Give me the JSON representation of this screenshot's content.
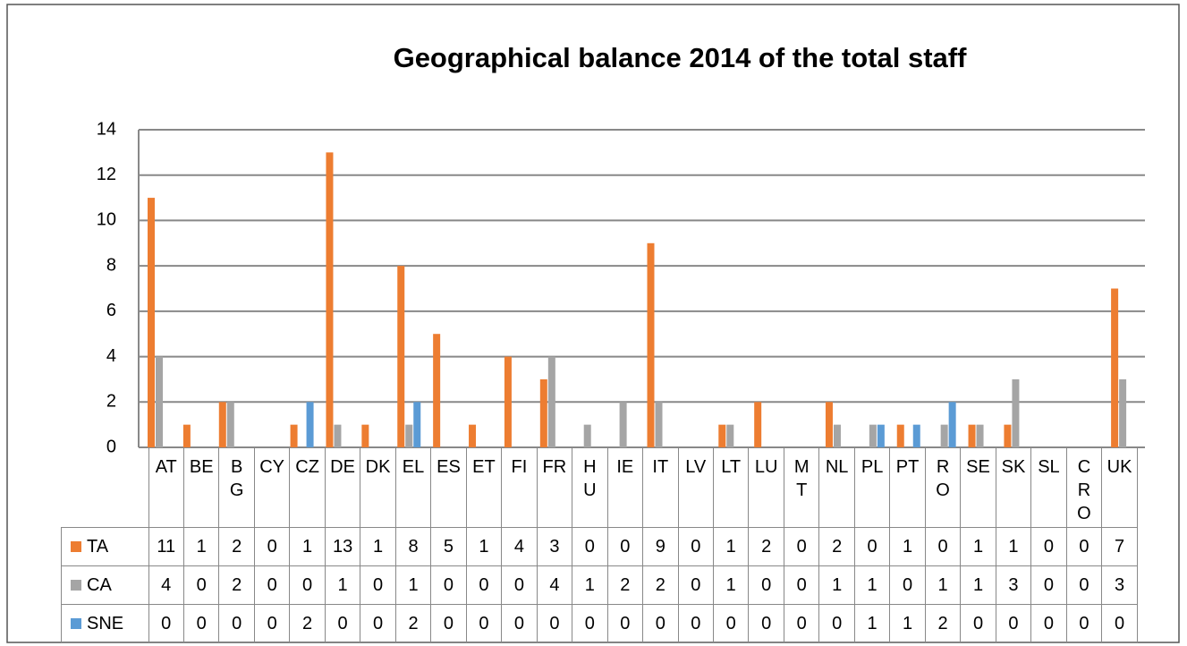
{
  "chart_data": {
    "type": "bar",
    "title": "Geographical balance 2014 of the total staff",
    "categories": [
      "AT",
      "BE",
      "BG",
      "CY",
      "CZ",
      "DE",
      "DK",
      "EL",
      "ES",
      "ET",
      "FI",
      "FR",
      "HU",
      "IE",
      "IT",
      "LV",
      "LT",
      "LU",
      "MT",
      "NL",
      "PL",
      "PT",
      "RO",
      "SE",
      "SK",
      "SL",
      "CRO",
      "UK"
    ],
    "series": [
      {
        "name": "TA",
        "color": "#ed7d31",
        "values": [
          11,
          1,
          2,
          0,
          1,
          13,
          1,
          8,
          5,
          1,
          4,
          3,
          0,
          0,
          9,
          0,
          1,
          2,
          0,
          2,
          0,
          1,
          0,
          1,
          1,
          0,
          0,
          7
        ]
      },
      {
        "name": "CA",
        "color": "#a5a5a5",
        "values": [
          4,
          0,
          2,
          0,
          0,
          1,
          0,
          1,
          0,
          0,
          0,
          4,
          1,
          2,
          2,
          0,
          1,
          0,
          0,
          1,
          1,
          0,
          1,
          1,
          3,
          0,
          0,
          3
        ]
      },
      {
        "name": "SNE",
        "color": "#5b9bd5",
        "values": [
          0,
          0,
          0,
          0,
          2,
          0,
          0,
          2,
          0,
          0,
          0,
          0,
          0,
          0,
          0,
          0,
          0,
          0,
          0,
          0,
          1,
          1,
          2,
          0,
          0,
          0,
          0,
          0
        ]
      }
    ],
    "ylim": [
      0,
      14
    ],
    "yticks": [
      0,
      2,
      4,
      6,
      8,
      10,
      12,
      14
    ],
    "grid": true
  }
}
